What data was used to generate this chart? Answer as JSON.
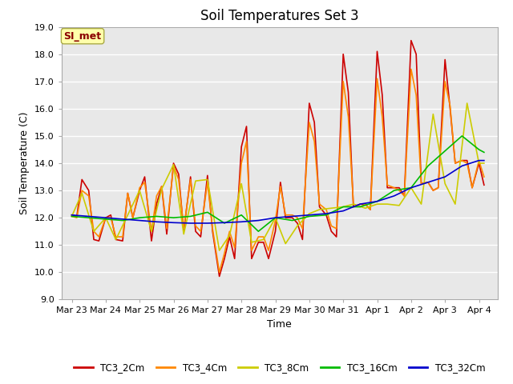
{
  "title": "Soil Temperatures Set 3",
  "xlabel": "Time",
  "ylabel": "Soil Temperature (C)",
  "ylim": [
    9.0,
    19.0
  ],
  "yticks": [
    9.0,
    10.0,
    11.0,
    12.0,
    13.0,
    14.0,
    15.0,
    16.0,
    17.0,
    18.0,
    19.0
  ],
  "outer_bg": "#ffffff",
  "plot_bg_color": "#e8e8e8",
  "grid_color": "#ffffff",
  "annotation_text": "SI_met",
  "annotation_color": "#8b0000",
  "annotation_bg": "#ffffaa",
  "annotation_edge": "#aaaa44",
  "series": {
    "TC3_2Cm": {
      "color": "#cc0000",
      "lw": 1.2
    },
    "TC3_4Cm": {
      "color": "#ff8800",
      "lw": 1.2
    },
    "TC3_8Cm": {
      "color": "#cccc00",
      "lw": 1.2
    },
    "TC3_16Cm": {
      "color": "#00bb00",
      "lw": 1.2
    },
    "TC3_32Cm": {
      "color": "#0000cc",
      "lw": 1.2
    }
  },
  "x_labels": [
    "Mar 23",
    "Mar 24",
    "Mar 25",
    "Mar 26",
    "Mar 27",
    "Mar 28",
    "Mar 29",
    "Mar 30",
    "Mar 31",
    "Apr 1",
    "Apr 2",
    "Apr 3",
    "Apr 4"
  ],
  "x_positions": [
    0,
    1,
    2,
    3,
    4,
    5,
    6,
    7,
    8,
    9,
    10,
    11,
    12
  ],
  "TC3_2Cm_x": [
    0.0,
    0.15,
    0.3,
    0.5,
    0.65,
    0.8,
    1.0,
    1.15,
    1.3,
    1.5,
    1.65,
    1.8,
    2.0,
    2.15,
    2.35,
    2.5,
    2.65,
    2.8,
    3.0,
    3.15,
    3.3,
    3.5,
    3.65,
    3.8,
    4.0,
    4.15,
    4.35,
    4.5,
    4.65,
    4.8,
    5.0,
    5.15,
    5.3,
    5.5,
    5.65,
    5.8,
    6.0,
    6.15,
    6.3,
    6.5,
    6.65,
    6.8,
    7.0,
    7.15,
    7.3,
    7.5,
    7.65,
    7.8,
    8.0,
    8.15,
    8.3,
    8.5,
    8.65,
    8.8,
    9.0,
    9.15,
    9.3,
    9.5,
    9.65,
    9.8,
    10.0,
    10.15,
    10.3,
    10.5,
    10.65,
    10.8,
    11.0,
    11.15,
    11.3,
    11.5,
    11.65,
    11.8,
    12.0,
    12.15
  ],
  "TC3_2Cm_y": [
    12.1,
    12.05,
    13.4,
    13.0,
    11.2,
    11.15,
    12.0,
    12.1,
    11.2,
    11.15,
    12.9,
    12.0,
    13.0,
    13.5,
    11.15,
    12.5,
    13.15,
    11.4,
    14.0,
    13.6,
    11.5,
    13.5,
    11.5,
    11.3,
    13.55,
    11.5,
    9.85,
    10.5,
    11.3,
    10.5,
    14.6,
    15.35,
    10.5,
    11.1,
    11.1,
    10.5,
    11.5,
    13.3,
    12.0,
    12.0,
    11.8,
    11.2,
    16.2,
    15.5,
    12.4,
    12.1,
    11.5,
    11.3,
    18.0,
    16.6,
    12.4,
    12.5,
    12.5,
    12.3,
    18.1,
    16.5,
    13.1,
    13.1,
    13.1,
    12.8,
    18.5,
    18.0,
    13.25,
    13.3,
    13.0,
    13.1,
    17.8,
    16.0,
    14.0,
    14.1,
    14.1,
    13.1,
    14.0,
    13.2
  ],
  "TC3_4Cm_x": [
    0.0,
    0.15,
    0.3,
    0.5,
    0.65,
    0.8,
    1.0,
    1.15,
    1.3,
    1.5,
    1.65,
    1.8,
    2.0,
    2.15,
    2.35,
    2.5,
    2.65,
    2.8,
    3.0,
    3.15,
    3.3,
    3.5,
    3.65,
    3.8,
    4.0,
    4.15,
    4.35,
    4.5,
    4.65,
    4.8,
    5.0,
    5.15,
    5.3,
    5.5,
    5.65,
    5.8,
    6.0,
    6.15,
    6.3,
    6.5,
    6.65,
    6.8,
    7.0,
    7.15,
    7.3,
    7.5,
    7.65,
    7.8,
    8.0,
    8.15,
    8.3,
    8.5,
    8.65,
    8.8,
    9.0,
    9.15,
    9.3,
    9.5,
    9.65,
    9.8,
    10.0,
    10.15,
    10.3,
    10.5,
    10.65,
    10.8,
    11.0,
    11.15,
    11.3,
    11.5,
    11.65,
    11.8,
    12.0,
    12.15
  ],
  "TC3_4Cm_y": [
    12.05,
    12.0,
    13.0,
    12.8,
    11.5,
    11.3,
    12.0,
    12.0,
    11.3,
    11.3,
    12.9,
    12.0,
    13.1,
    13.3,
    11.5,
    12.8,
    13.15,
    11.6,
    13.9,
    13.4,
    11.6,
    13.4,
    11.7,
    11.5,
    13.3,
    11.6,
    10.0,
    10.7,
    11.5,
    10.9,
    14.0,
    14.8,
    10.8,
    11.3,
    11.3,
    10.8,
    11.9,
    13.15,
    12.1,
    12.1,
    12.0,
    11.6,
    15.5,
    14.8,
    12.5,
    12.3,
    11.7,
    11.6,
    17.0,
    15.7,
    12.5,
    12.4,
    12.5,
    12.3,
    17.1,
    15.7,
    13.2,
    13.1,
    13.0,
    12.8,
    17.45,
    16.5,
    13.25,
    13.3,
    13.0,
    13.1,
    17.0,
    16.1,
    14.0,
    14.1,
    14.0,
    13.1,
    14.1,
    13.5
  ],
  "TC3_8Cm_x": [
    0.0,
    0.3,
    0.65,
    1.0,
    1.3,
    1.65,
    2.0,
    2.35,
    2.65,
    3.0,
    3.3,
    3.65,
    4.0,
    4.35,
    4.65,
    5.0,
    5.3,
    5.65,
    6.0,
    6.3,
    6.65,
    7.0,
    7.3,
    7.65,
    8.0,
    8.3,
    8.65,
    9.0,
    9.3,
    9.65,
    10.0,
    10.3,
    10.65,
    11.0,
    11.3,
    11.65,
    12.0,
    12.15
  ],
  "TC3_8Cm_y": [
    12.05,
    12.9,
    11.5,
    12.0,
    11.2,
    12.1,
    13.0,
    11.5,
    13.05,
    13.95,
    11.4,
    13.35,
    13.4,
    10.8,
    11.35,
    13.25,
    11.1,
    11.2,
    12.0,
    11.05,
    11.7,
    12.15,
    12.3,
    12.35,
    12.4,
    12.5,
    12.35,
    12.5,
    12.5,
    12.45,
    13.1,
    12.5,
    15.8,
    13.25,
    12.5,
    16.2,
    14.0,
    14.0
  ],
  "TC3_16Cm_x": [
    0.0,
    0.5,
    1.0,
    1.5,
    2.0,
    2.5,
    3.0,
    3.5,
    4.0,
    4.5,
    5.0,
    5.5,
    6.0,
    6.5,
    7.0,
    7.5,
    8.0,
    8.5,
    9.0,
    9.5,
    10.0,
    10.5,
    11.0,
    11.5,
    12.0,
    12.15
  ],
  "TC3_16Cm_y": [
    12.05,
    12.0,
    11.95,
    11.9,
    12.0,
    12.05,
    12.0,
    12.05,
    12.2,
    11.8,
    12.1,
    11.5,
    12.0,
    11.9,
    12.05,
    12.1,
    12.4,
    12.4,
    12.6,
    13.0,
    13.1,
    13.9,
    14.45,
    15.0,
    14.5,
    14.4
  ],
  "TC3_32Cm_x": [
    0.0,
    0.5,
    1.0,
    1.5,
    2.0,
    2.5,
    3.0,
    3.5,
    4.0,
    4.5,
    5.0,
    5.5,
    6.0,
    6.5,
    7.0,
    7.5,
    8.0,
    8.5,
    9.0,
    9.5,
    10.0,
    10.5,
    11.0,
    11.5,
    12.0,
    12.15
  ],
  "TC3_32Cm_y": [
    12.1,
    12.05,
    12.0,
    11.95,
    11.9,
    11.85,
    11.82,
    11.8,
    11.8,
    11.82,
    11.85,
    11.9,
    12.0,
    12.05,
    12.1,
    12.15,
    12.25,
    12.5,
    12.6,
    12.8,
    13.1,
    13.3,
    13.5,
    13.9,
    14.1,
    14.1
  ]
}
